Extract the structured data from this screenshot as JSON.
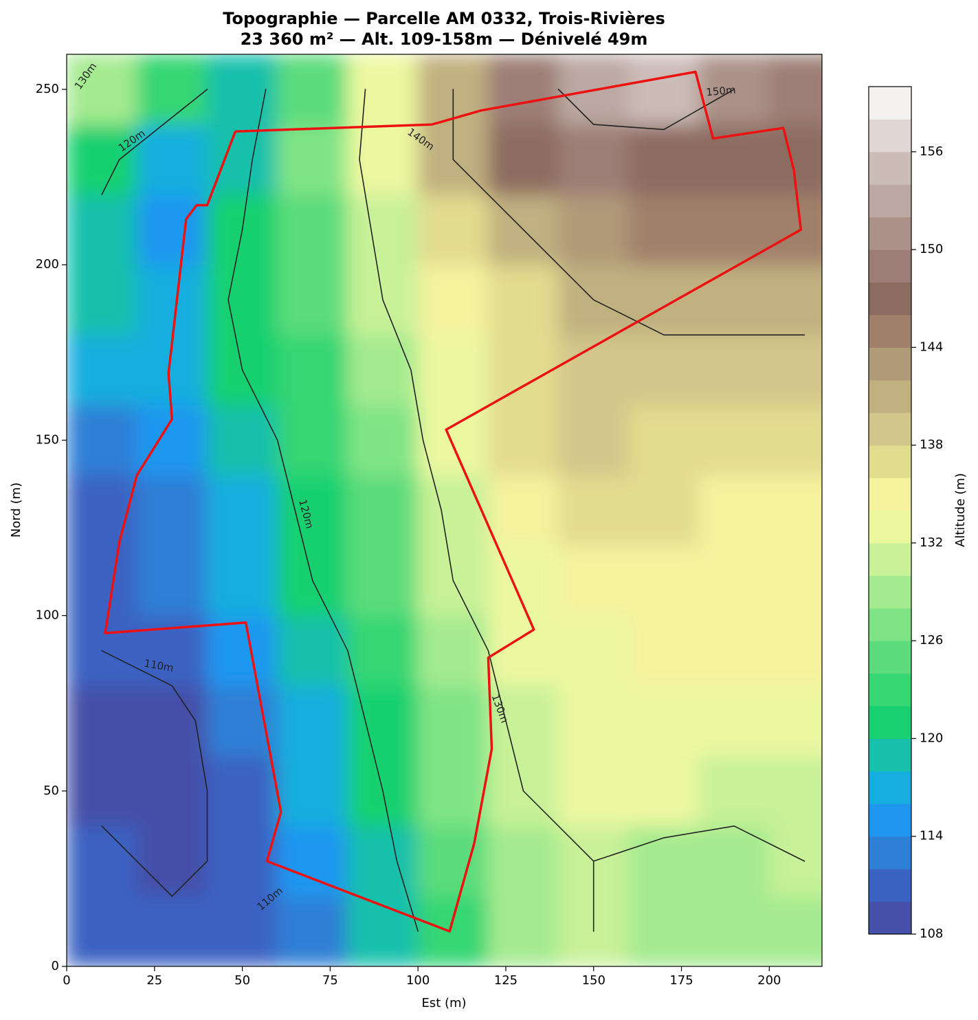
{
  "chart_data": {
    "type": "contour",
    "title": "Topographie — Parcelle AM 0332, Trois-Rivières",
    "subtitle": "23 360 m² — Alt. 109-158m — Dénivelé 49m",
    "x_label": "Est (m)",
    "y_label": "Nord (m)",
    "xlim": [
      0,
      215
    ],
    "ylim": [
      0,
      260
    ],
    "xticks": [
      0,
      25,
      50,
      75,
      100,
      125,
      150,
      175,
      200
    ],
    "yticks": [
      0,
      50,
      100,
      150,
      200,
      250
    ],
    "grid": {
      "x": [
        10,
        30,
        50,
        70,
        90,
        110,
        130,
        150,
        170,
        190,
        210
      ],
      "y": [
        10,
        30,
        50,
        70,
        90,
        110,
        130,
        150,
        170,
        190,
        210,
        230,
        250
      ],
      "z": [
        [
          111,
          111,
          110,
          112,
          118,
          122,
          128,
          130,
          129,
          129,
          128
        ],
        [
          111,
          109,
          111,
          114,
          119,
          124,
          129,
          130,
          129,
          129,
          130
        ],
        [
          109,
          109,
          111,
          116,
          120,
          126,
          130,
          132,
          132,
          131,
          131
        ],
        [
          109,
          109,
          112,
          117,
          121,
          127,
          131,
          133,
          133,
          133,
          132
        ],
        [
          110,
          111,
          114,
          118,
          122,
          128,
          132,
          133,
          134,
          134,
          134
        ],
        [
          111,
          112,
          116,
          120,
          124,
          130,
          133,
          134,
          135,
          134,
          134
        ],
        [
          111,
          113,
          117,
          121,
          125,
          131,
          134,
          136,
          136,
          135,
          135
        ],
        [
          113,
          114,
          118,
          122,
          126,
          133,
          136,
          138,
          137,
          137,
          137
        ],
        [
          116,
          116,
          120,
          123,
          128,
          133,
          136,
          138,
          139,
          139,
          139
        ],
        [
          118,
          116,
          121,
          124,
          130,
          134,
          137,
          140,
          141,
          141,
          141
        ],
        [
          119,
          115,
          120,
          125,
          131,
          136,
          140,
          143,
          145,
          145,
          144
        ],
        [
          121,
          117,
          119,
          126,
          132,
          140,
          146,
          148,
          147,
          146,
          146
        ],
        [
          128,
          122,
          118,
          124,
          132,
          140,
          148,
          152,
          154,
          150,
          148
        ]
      ]
    },
    "contour_levels": [
      110,
      120,
      130,
      140,
      150
    ],
    "contour_labels": [
      "130m",
      "120m",
      "140m",
      "150m",
      "120m",
      "110m",
      "130m",
      "110m"
    ],
    "contour_color": "#222222",
    "parcel": {
      "color": "#ee1111",
      "x": [
        48,
        104,
        118,
        179,
        184,
        204,
        207,
        209,
        108,
        133,
        120,
        121,
        116,
        109,
        57,
        61,
        51,
        11,
        15,
        20,
        30,
        29,
        34,
        37,
        40,
        48
      ],
      "y": [
        238,
        240,
        244,
        255,
        236,
        239,
        227,
        210,
        153,
        96,
        88,
        62,
        35,
        10,
        30,
        44,
        98,
        95,
        121,
        140,
        156,
        169,
        213,
        217,
        217,
        238
      ]
    },
    "colorbar": {
      "label": "Altitude (m)",
      "levels": [
        108,
        110,
        112,
        114,
        116,
        118,
        120,
        122,
        124,
        126,
        128,
        130,
        132,
        134,
        136,
        138,
        140,
        142,
        144,
        146,
        148,
        150,
        152,
        154,
        156,
        158,
        160
      ],
      "colors": [
        "#4550a8",
        "#3a62c2",
        "#2e7fd6",
        "#1f97f0",
        "#16aede",
        "#18c0ab",
        "#18d070",
        "#36d673",
        "#5cdc7c",
        "#80e486",
        "#a4ea8f",
        "#c8f198",
        "#ecf8a0",
        "#f5f29e",
        "#e2dc8e",
        "#d2c68a",
        "#c1b080",
        "#b09a78",
        "#a0806a",
        "#8c6c60",
        "#9c7e76",
        "#ab9188",
        "#bba8a2",
        "#ccbcb8",
        "#e0d6d4",
        "#f4f2f0"
      ],
      "ticks": [
        108,
        114,
        120,
        126,
        132,
        138,
        144,
        150,
        156
      ]
    }
  }
}
